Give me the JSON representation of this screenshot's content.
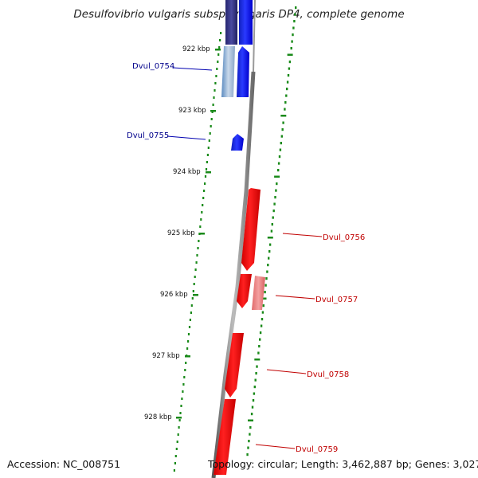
{
  "title": "Desulfovibrio vulgaris subsp. vulgaris DP4, complete genome",
  "footer": {
    "accession": "Accession: NC_008751",
    "summary": "Topology: circular; Length: 3,462,887 bp; Genes: 3,027"
  },
  "colors": {
    "plus_strand": "#0a14ff",
    "plus_strand_dark": "#2a2a80",
    "minus_strand": "#ff0a0a",
    "minus_strand_light": "#f08080",
    "ruler": "#808080",
    "gc_ticks": "#1a8a1a",
    "label_plus": "#00008b",
    "label_minus": "#c00000"
  },
  "ruler": {
    "ticks": [
      "922 kbp",
      "923 kbp",
      "924 kbp",
      "925 kbp",
      "926 kbp",
      "927 kbp",
      "928 kbp"
    ]
  },
  "genes": [
    {
      "label": "Dvul_0754",
      "strand": "plus"
    },
    {
      "label": "Dvul_0755",
      "strand": "plus"
    },
    {
      "label": "Dvul_0756",
      "strand": "minus"
    },
    {
      "label": "Dvul_0757",
      "strand": "minus"
    },
    {
      "label": "Dvul_0758",
      "strand": "minus"
    },
    {
      "label": "Dvul_0759",
      "strand": "minus"
    }
  ]
}
